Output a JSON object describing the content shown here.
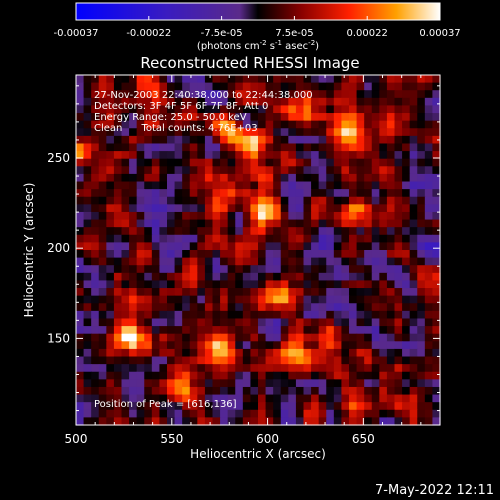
{
  "chart_data": {
    "type": "heatmap",
    "title": "Reconstructed RHESSI Image",
    "xlabel": "Heliocentric X (arcsec)",
    "ylabel": "Heliocentric Y (arcsec)",
    "xlim": [
      500,
      690
    ],
    "ylim": [
      102,
      296
    ],
    "x_ticks": [
      500,
      550,
      600,
      650
    ],
    "y_ticks": [
      150,
      200,
      250
    ],
    "colorbar": {
      "ticks": [
        "-0.00037",
        "-0.00022",
        "-7.5e-05",
        "7.5e-05",
        "0.00022",
        "0.00037"
      ],
      "unit_main": "(photons cm",
      "unit_sup1": "-2",
      "unit_s": " s",
      "unit_sup2": "-1",
      "unit_asec": " asec",
      "unit_sup3": "-2",
      "unit_end": ")",
      "min": -0.00037,
      "max": 0.00037
    },
    "info_lines": [
      "27-Nov-2003 22:40:38.000 to 22:44:38.000",
      "Detectors: 3F 4F 5F 6F 7F 8F, Att 0",
      "Energy Range: 25.0 - 50.0 keV",
      "Clean      Total counts: 4.76E+03"
    ],
    "peak_label": "Position of Peak = [616,136]",
    "peak": [
      616,
      136
    ],
    "sources": [
      {
        "x": 615,
        "y": 140,
        "value": 0.00037
      },
      {
        "x": 605,
        "y": 175,
        "value": 0.0003
      },
      {
        "x": 598,
        "y": 222,
        "value": 0.00029
      },
      {
        "x": 592,
        "y": 258,
        "value": 0.00033
      },
      {
        "x": 575,
        "y": 225,
        "value": 0.00026
      },
      {
        "x": 580,
        "y": 265,
        "value": 0.00022
      },
      {
        "x": 530,
        "y": 150,
        "value": 0.0003
      },
      {
        "x": 575,
        "y": 145,
        "value": 0.00028
      },
      {
        "x": 612,
        "y": 276,
        "value": 0.00028
      },
      {
        "x": 640,
        "y": 265,
        "value": 0.00022
      },
      {
        "x": 555,
        "y": 125,
        "value": 0.00022
      },
      {
        "x": 540,
        "y": 285,
        "value": 0.0002
      },
      {
        "x": 645,
        "y": 220,
        "value": 0.00017
      },
      {
        "x": 665,
        "y": 265,
        "value": 0.00018
      },
      {
        "x": 502,
        "y": 255,
        "value": 0.00016
      },
      {
        "x": 635,
        "y": 150,
        "value": 0.00015
      },
      {
        "x": 650,
        "y": 115,
        "value": 0.00012
      }
    ]
  },
  "footer": {
    "date": "7-May-2022 12:11"
  }
}
